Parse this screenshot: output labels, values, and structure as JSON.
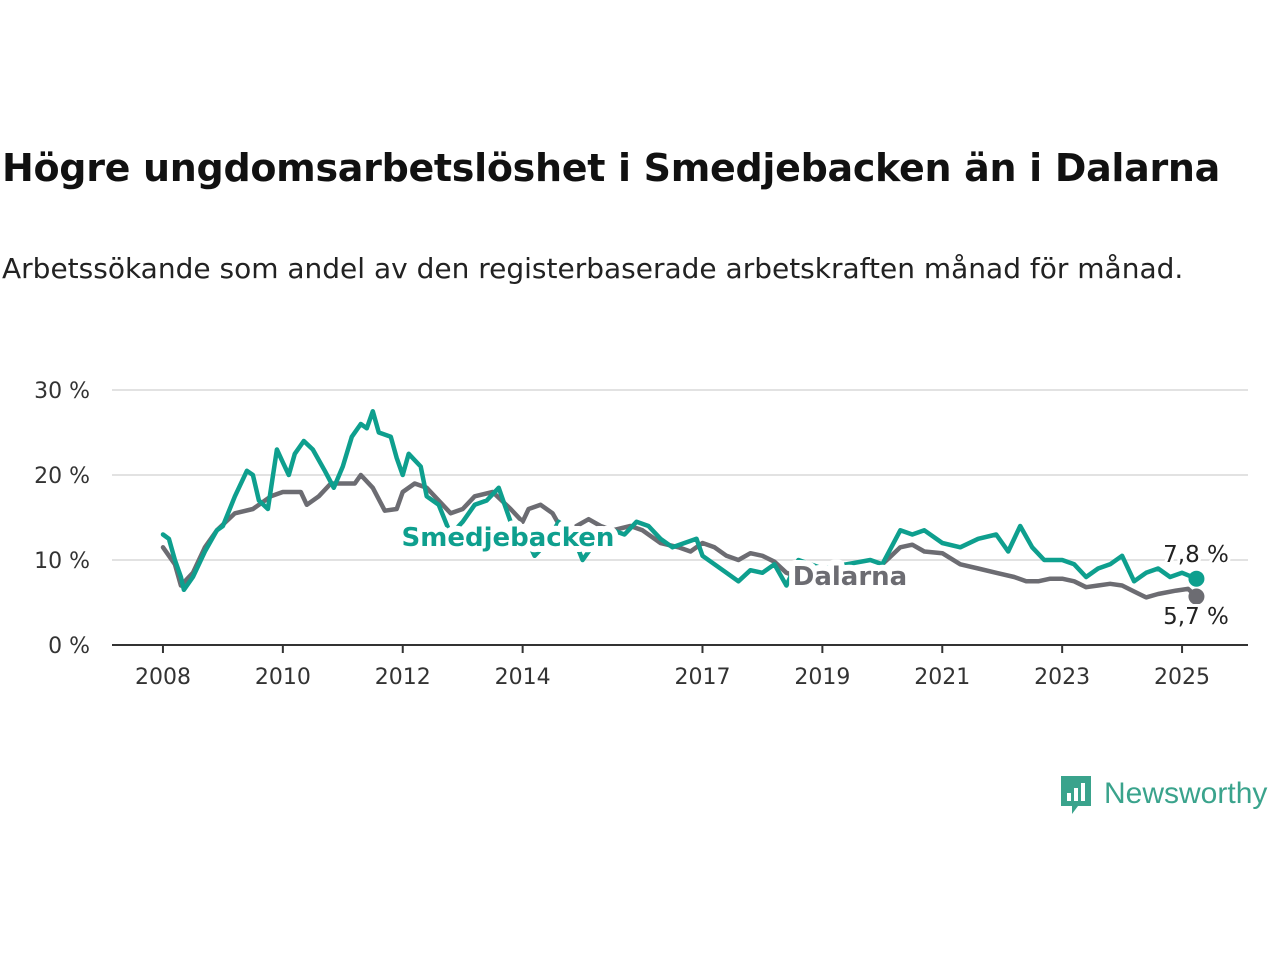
{
  "title": "Högre ungdomsarbetslöshet i Smedjebacken än i Dalarna",
  "subtitle": "Arbetssökande som andel av den registerbaserade arbetskraften månad för månad.",
  "brand": {
    "name": "Newsworthy",
    "icon": "newsworthy-logo-icon",
    "color": "#3aa38c"
  },
  "chart_data": {
    "type": "line",
    "y_ticks": [
      "0 %",
      "10 %",
      "20 %",
      "30 %"
    ],
    "ylim": [
      0,
      30
    ],
    "x_ticks": [
      "2008",
      "2010",
      "2012",
      "2014",
      "2017",
      "2019",
      "2021",
      "2023",
      "2025"
    ],
    "x_tick_values": [
      2008,
      2010,
      2012,
      2014,
      2017,
      2019,
      2021,
      2023,
      2025
    ],
    "xlim": [
      2007.15,
      2026.1
    ],
    "grid": true,
    "series": [
      {
        "name": "Dalarna",
        "color": "#6c6c72",
        "end_label": "5,7 %",
        "points": [
          [
            2008.0,
            11.5
          ],
          [
            2008.2,
            9.5
          ],
          [
            2008.3,
            7.0
          ],
          [
            2008.5,
            8.5
          ],
          [
            2008.7,
            11.5
          ],
          [
            2008.9,
            13.5
          ],
          [
            2009.2,
            15.5
          ],
          [
            2009.5,
            16.0
          ],
          [
            2009.8,
            17.5
          ],
          [
            2010.0,
            18.0
          ],
          [
            2010.3,
            18.0
          ],
          [
            2010.4,
            16.5
          ],
          [
            2010.6,
            17.5
          ],
          [
            2010.8,
            19.0
          ],
          [
            2011.2,
            19.0
          ],
          [
            2011.3,
            20.0
          ],
          [
            2011.5,
            18.5
          ],
          [
            2011.7,
            15.8
          ],
          [
            2011.9,
            16.0
          ],
          [
            2012.0,
            18.0
          ],
          [
            2012.2,
            19.0
          ],
          [
            2012.4,
            18.5
          ],
          [
            2012.6,
            17.0
          ],
          [
            2012.8,
            15.5
          ],
          [
            2013.0,
            16.0
          ],
          [
            2013.2,
            17.5
          ],
          [
            2013.5,
            18.0
          ],
          [
            2013.8,
            16.0
          ],
          [
            2014.0,
            14.5
          ],
          [
            2014.1,
            16.0
          ],
          [
            2014.3,
            16.5
          ],
          [
            2014.5,
            15.5
          ],
          [
            2014.7,
            13.0
          ],
          [
            2014.9,
            14.0
          ],
          [
            2015.1,
            14.8
          ],
          [
            2015.3,
            14.0
          ],
          [
            2015.5,
            13.5
          ],
          [
            2015.8,
            14.0
          ],
          [
            2016.0,
            13.5
          ],
          [
            2016.3,
            12.0
          ],
          [
            2016.6,
            11.5
          ],
          [
            2016.8,
            11.0
          ],
          [
            2017.0,
            12.0
          ],
          [
            2017.2,
            11.5
          ],
          [
            2017.4,
            10.5
          ],
          [
            2017.6,
            10.0
          ],
          [
            2017.8,
            10.8
          ],
          [
            2018.0,
            10.5
          ],
          [
            2018.2,
            9.8
          ],
          [
            2018.4,
            8.5
          ],
          [
            2018.6,
            8.0
          ],
          [
            2018.8,
            7.8
          ],
          [
            2019.0,
            8.0
          ],
          [
            2019.4,
            7.8
          ],
          [
            2019.8,
            8.0
          ],
          [
            2020.0,
            9.5
          ],
          [
            2020.3,
            11.5
          ],
          [
            2020.5,
            11.8
          ],
          [
            2020.7,
            11.0
          ],
          [
            2021.0,
            10.8
          ],
          [
            2021.3,
            9.5
          ],
          [
            2021.6,
            9.0
          ],
          [
            2021.9,
            8.5
          ],
          [
            2022.2,
            8.0
          ],
          [
            2022.4,
            7.5
          ],
          [
            2022.6,
            7.5
          ],
          [
            2022.8,
            7.8
          ],
          [
            2023.0,
            7.8
          ],
          [
            2023.2,
            7.5
          ],
          [
            2023.4,
            6.8
          ],
          [
            2023.6,
            7.0
          ],
          [
            2023.8,
            7.2
          ],
          [
            2024.0,
            7.0
          ],
          [
            2024.2,
            6.3
          ],
          [
            2024.4,
            5.6
          ],
          [
            2024.6,
            6.0
          ],
          [
            2024.9,
            6.4
          ],
          [
            2025.1,
            6.6
          ],
          [
            2025.24,
            5.7
          ]
        ]
      },
      {
        "name": "Smedjebacken",
        "color": "#0e9f8e",
        "end_label": "7,8 %",
        "points": [
          [
            2008.0,
            13.0
          ],
          [
            2008.1,
            12.5
          ],
          [
            2008.2,
            10.0
          ],
          [
            2008.3,
            8.0
          ],
          [
            2008.35,
            6.5
          ],
          [
            2008.5,
            8.0
          ],
          [
            2008.7,
            11.0
          ],
          [
            2008.9,
            13.5
          ],
          [
            2009.0,
            14.0
          ],
          [
            2009.2,
            17.5
          ],
          [
            2009.4,
            20.5
          ],
          [
            2009.5,
            20.0
          ],
          [
            2009.6,
            17.0
          ],
          [
            2009.75,
            16.0
          ],
          [
            2009.9,
            23.0
          ],
          [
            2010.0,
            21.5
          ],
          [
            2010.1,
            20.0
          ],
          [
            2010.2,
            22.5
          ],
          [
            2010.35,
            24.0
          ],
          [
            2010.5,
            23.0
          ],
          [
            2010.7,
            20.5
          ],
          [
            2010.85,
            18.5
          ],
          [
            2011.0,
            21.0
          ],
          [
            2011.15,
            24.5
          ],
          [
            2011.3,
            26.0
          ],
          [
            2011.4,
            25.5
          ],
          [
            2011.5,
            27.5
          ],
          [
            2011.6,
            25.0
          ],
          [
            2011.8,
            24.5
          ],
          [
            2011.9,
            22.0
          ],
          [
            2012.0,
            20.0
          ],
          [
            2012.1,
            22.5
          ],
          [
            2012.3,
            21.0
          ],
          [
            2012.4,
            17.5
          ],
          [
            2012.6,
            16.5
          ],
          [
            2012.8,
            13.0
          ],
          [
            2013.0,
            14.5
          ],
          [
            2013.2,
            16.5
          ],
          [
            2013.4,
            17.0
          ],
          [
            2013.6,
            18.5
          ],
          [
            2013.8,
            14.5
          ],
          [
            2014.0,
            13.5
          ],
          [
            2014.2,
            10.5
          ],
          [
            2014.4,
            12.0
          ],
          [
            2014.6,
            14.5
          ],
          [
            2014.8,
            13.5
          ],
          [
            2015.0,
            10.0
          ],
          [
            2015.2,
            12.0
          ],
          [
            2015.5,
            13.5
          ],
          [
            2015.7,
            13.0
          ],
          [
            2015.9,
            14.5
          ],
          [
            2016.1,
            14.0
          ],
          [
            2016.3,
            12.5
          ],
          [
            2016.5,
            11.5
          ],
          [
            2016.7,
            12.0
          ],
          [
            2016.9,
            12.5
          ],
          [
            2017.0,
            10.5
          ],
          [
            2017.2,
            9.5
          ],
          [
            2017.4,
            8.5
          ],
          [
            2017.6,
            7.5
          ],
          [
            2017.8,
            8.8
          ],
          [
            2018.0,
            8.5
          ],
          [
            2018.2,
            9.5
          ],
          [
            2018.4,
            7.0
          ],
          [
            2018.6,
            10.0
          ],
          [
            2018.8,
            9.5
          ],
          [
            2019.0,
            9.0
          ],
          [
            2019.4,
            9.5
          ],
          [
            2019.8,
            10.0
          ],
          [
            2020.0,
            9.5
          ],
          [
            2020.3,
            13.5
          ],
          [
            2020.5,
            13.0
          ],
          [
            2020.7,
            13.5
          ],
          [
            2021.0,
            12.0
          ],
          [
            2021.3,
            11.5
          ],
          [
            2021.6,
            12.5
          ],
          [
            2021.9,
            13.0
          ],
          [
            2022.1,
            11.0
          ],
          [
            2022.3,
            14.0
          ],
          [
            2022.5,
            11.5
          ],
          [
            2022.7,
            10.0
          ],
          [
            2023.0,
            10.0
          ],
          [
            2023.2,
            9.5
          ],
          [
            2023.4,
            8.0
          ],
          [
            2023.6,
            9.0
          ],
          [
            2023.8,
            9.5
          ],
          [
            2024.0,
            10.5
          ],
          [
            2024.2,
            7.5
          ],
          [
            2024.4,
            8.5
          ],
          [
            2024.6,
            9.0
          ],
          [
            2024.8,
            8.0
          ],
          [
            2025.0,
            8.5
          ],
          [
            2025.24,
            7.8
          ]
        ]
      }
    ]
  }
}
